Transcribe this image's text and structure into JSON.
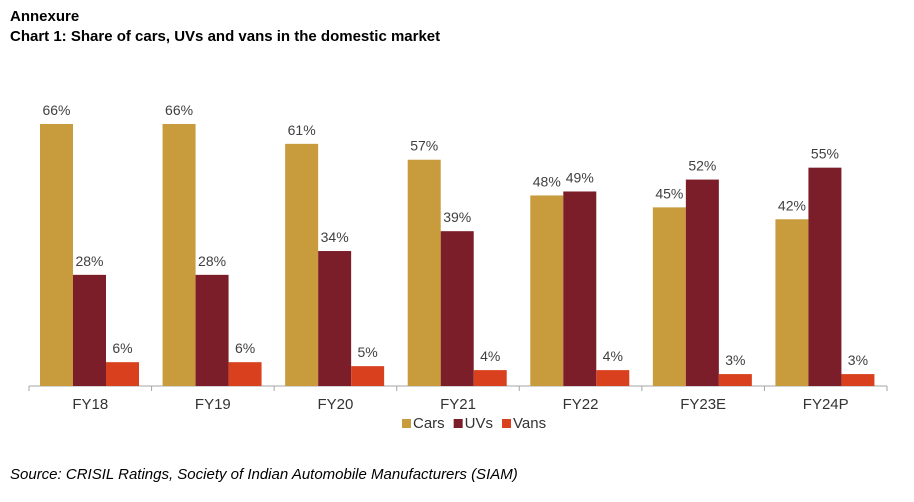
{
  "header": {
    "section": "Annexure",
    "title": "Chart 1: Share of cars, UVs and vans in the domestic market"
  },
  "source": "Source: CRISIL Ratings, Society of Indian Automobile Manufacturers (SIAM)",
  "chart_data": {
    "type": "bar",
    "title": "Chart 1: Share of cars, UVs and vans in the domestic market",
    "categories": [
      "FY18",
      "FY19",
      "FY20",
      "FY21",
      "FY22",
      "FY23E",
      "FY24P"
    ],
    "series": [
      {
        "name": "Cars",
        "color": "#C89B3C",
        "values": [
          66,
          66,
          61,
          57,
          48,
          45,
          42
        ]
      },
      {
        "name": "UVs",
        "color": "#7B1E2A",
        "values": [
          28,
          28,
          34,
          39,
          49,
          52,
          55
        ]
      },
      {
        "name": "Vans",
        "color": "#D9401E",
        "values": [
          6,
          6,
          5,
          4,
          4,
          3,
          3
        ]
      }
    ],
    "value_format": "percent",
    "ylim": [
      0,
      70
    ],
    "grid": false,
    "y_axis_visible": false,
    "legend": "bottom"
  }
}
